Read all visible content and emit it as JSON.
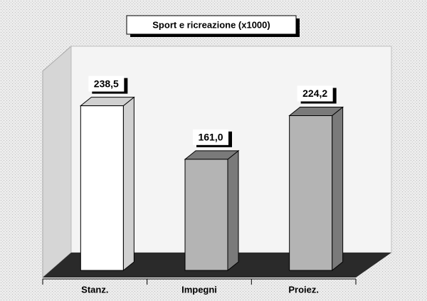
{
  "chart_data": {
    "type": "bar3d",
    "title": "Sport e ricreazione (x1000)",
    "categories": [
      "Stanz.",
      "Impegni",
      "Proiez."
    ],
    "values": [
      238.5,
      161.0,
      224.2
    ],
    "value_labels": [
      "238,5",
      "161,0",
      "224,2"
    ],
    "colors": [
      "#ffffff",
      "#b4b4b4",
      "#b4b4b4"
    ],
    "ylim": [
      0,
      300
    ]
  }
}
